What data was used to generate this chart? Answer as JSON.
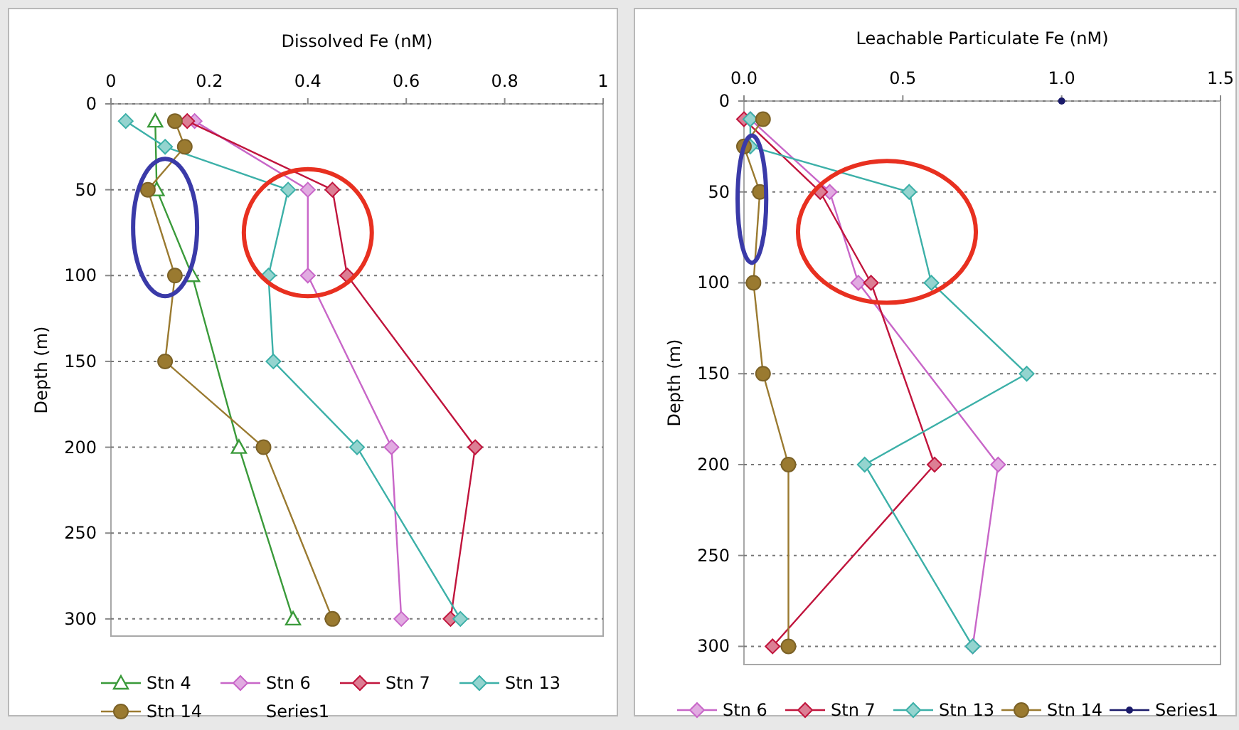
{
  "chart_data": [
    {
      "type": "line",
      "xlabel": "Dissolved Fe (nM)",
      "ylabel": "Depth (m)",
      "xlim": [
        0,
        1
      ],
      "xticks": [
        0,
        0.2,
        0.4,
        0.6,
        0.8,
        1
      ],
      "ylim": [
        310,
        0
      ],
      "yticks": [
        0,
        50,
        100,
        150,
        200,
        250,
        300
      ],
      "grid": "y",
      "legend": "bottom",
      "series": [
        {
          "name": "Stn 4",
          "color": "#3a9a3a",
          "marker": "triangle",
          "x": [
            0.09,
            0.093,
            0.165,
            0.26,
            0.37
          ],
          "values": [
            10,
            50,
            100,
            200,
            300
          ]
        },
        {
          "name": "Stn 6",
          "color": "#c866c8",
          "marker": "diamond",
          "x": [
            0.17,
            0.4,
            0.4,
            0.57,
            0.59
          ],
          "values": [
            10,
            50,
            100,
            200,
            300
          ]
        },
        {
          "name": "Stn 7",
          "color": "#c0143c",
          "marker": "diamond",
          "x": [
            0.155,
            0.45,
            0.48,
            0.74,
            0.69
          ],
          "values": [
            10,
            50,
            100,
            200,
            300
          ]
        },
        {
          "name": "Stn 13",
          "color": "#3cb0a8",
          "marker": "diamond",
          "x": [
            0.03,
            0.11,
            0.36,
            0.32,
            0.33,
            0.5,
            0.71
          ],
          "values": [
            10,
            25,
            50,
            100,
            150,
            200,
            300
          ]
        },
        {
          "name": "Stn 14",
          "color": "#9a7a30",
          "marker": "circle",
          "x": [
            0.13,
            0.15,
            0.075,
            0.13,
            0.11,
            0.31,
            0.45
          ],
          "values": [
            10,
            25,
            50,
            100,
            150,
            200,
            300
          ]
        },
        {
          "name": "Series1"
        }
      ]
    },
    {
      "type": "line",
      "xlabel": "Leachable Particulate Fe (nM)",
      "ylabel": "Depth (m)",
      "xlim": [
        0,
        1.5
      ],
      "xticks": [
        {
          "value": 0,
          "label": "0.0"
        },
        {
          "value": 0.5,
          "label": "0.5"
        },
        {
          "value": 1,
          "label": "1.0"
        },
        {
          "value": 1.5,
          "label": "1.5"
        }
      ],
      "ylim": [
        310,
        0
      ],
      "yticks": [
        0,
        50,
        100,
        150,
        200,
        250,
        300
      ],
      "grid": "y",
      "legend": "bottom",
      "series": [
        {
          "name": "Stn 6",
          "color": "#c866c8",
          "marker": "diamond",
          "x": [
            0.02,
            0.27,
            0.36,
            0.8,
            0.72
          ],
          "values": [
            10,
            50,
            100,
            200,
            300
          ]
        },
        {
          "name": "Stn 7",
          "color": "#c0143c",
          "marker": "diamond",
          "x": [
            0.0,
            0.24,
            0.4,
            0.6,
            0.09
          ],
          "values": [
            10,
            50,
            100,
            200,
            300
          ]
        },
        {
          "name": "Stn 13",
          "color": "#3cb0a8",
          "marker": "diamond",
          "x": [
            0.02,
            0.02,
            0.52,
            0.59,
            0.89,
            0.38,
            0.72
          ],
          "values": [
            10,
            25,
            50,
            100,
            150,
            200,
            300
          ]
        },
        {
          "name": "Stn 14",
          "color": "#9a7a30",
          "marker": "circle",
          "x": [
            0.06,
            0.0,
            0.05,
            0.03,
            0.06,
            0.14,
            0.14
          ],
          "values": [
            10,
            25,
            50,
            100,
            150,
            200,
            300
          ]
        },
        {
          "name": "Series1",
          "color": "#1a1a6a",
          "marker": "circle",
          "x": [
            1.0
          ],
          "values": [
            0
          ]
        }
      ]
    }
  ]
}
